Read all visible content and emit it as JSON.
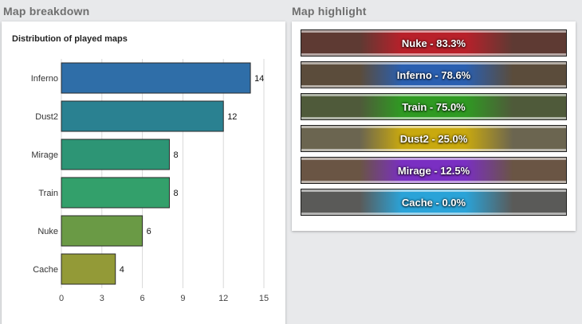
{
  "left_section": {
    "title": "Map breakdown"
  },
  "right_section": {
    "title": "Map highlight"
  },
  "chart_data": {
    "type": "bar",
    "orientation": "horizontal",
    "title": "Distribution of played maps",
    "categories": [
      "Inferno",
      "Dust2",
      "Mirage",
      "Train",
      "Nuke",
      "Cache"
    ],
    "values": [
      14,
      12,
      8,
      8,
      6,
      4
    ],
    "colors": [
      "#2f6ea8",
      "#2a8191",
      "#2d9575",
      "#33a06b",
      "#6a9a45",
      "#939a37"
    ],
    "xticks": [
      0,
      3,
      6,
      9,
      12,
      15
    ],
    "xlim": [
      0,
      15
    ],
    "grid": true,
    "data_labels": true
  },
  "map_highlights": [
    {
      "label": "Nuke - 83.3%",
      "color": "#b8202a",
      "bg": "#5e3a33"
    },
    {
      "label": "Inferno - 78.6%",
      "color": "#2a5fb0",
      "bg": "#5b4c3b"
    },
    {
      "label": "Train - 75.0%",
      "color": "#2f9a22",
      "bg": "#4f5a3a"
    },
    {
      "label": "Dust2 - 25.0%",
      "color": "#c9a90f",
      "bg": "#6b6550"
    },
    {
      "label": "Mirage - 12.5%",
      "color": "#7a2fc2",
      "bg": "#6a5544"
    },
    {
      "label": "Cache - 0.0%",
      "color": "#2aa3d8",
      "bg": "#5a5a58"
    }
  ]
}
